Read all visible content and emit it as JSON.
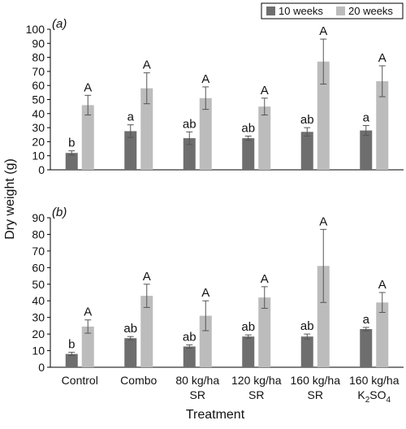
{
  "figure": {
    "y_axis_label": "Dry weight (g)",
    "x_axis_label": "Treatment",
    "legend": [
      {
        "label": "10 weeks",
        "color": "#6e6e6e"
      },
      {
        "label": "20 weeks",
        "color": "#bcbcbc"
      }
    ],
    "category_lines": [
      [
        "Control"
      ],
      [
        "Combo"
      ],
      [
        "80 kg/ha",
        "SR"
      ],
      [
        "120 kg/ha",
        "SR"
      ],
      [
        "160 kg/ha",
        "SR"
      ],
      [
        "160 kg/ha",
        "K2SO4"
      ]
    ]
  },
  "chart_data": [
    {
      "type": "bar",
      "panel_label": "(a)",
      "categories": [
        "Control",
        "Combo",
        "80 kg/ha SR",
        "120 kg/ha SR",
        "160 kg/ha SR",
        "160 kg/ha K2SO4"
      ],
      "ylim": [
        0,
        100
      ],
      "yticks": [
        0,
        10,
        20,
        30,
        40,
        50,
        60,
        70,
        80,
        90,
        100
      ],
      "series": [
        {
          "name": "10 weeks",
          "color": "#6e6e6e",
          "values": [
            12,
            27.5,
            22.5,
            22.5,
            27,
            28
          ],
          "errors": [
            1.5,
            4.5,
            4.5,
            1.5,
            3,
            3.5
          ],
          "letters": [
            "b",
            "a",
            "ab",
            "ab",
            "ab",
            "a"
          ]
        },
        {
          "name": "20 weeks",
          "color": "#bcbcbc",
          "values": [
            46,
            58,
            51,
            45,
            77,
            63
          ],
          "errors": [
            7,
            11,
            8,
            6,
            16,
            11
          ],
          "letters": [
            "A",
            "A",
            "A",
            "A",
            "A",
            "A"
          ]
        }
      ]
    },
    {
      "type": "bar",
      "panel_label": "(b)",
      "categories": [
        "Control",
        "Combo",
        "80 kg/ha SR",
        "120 kg/ha SR",
        "160 kg/ha SR",
        "160 kg/ha K2SO4"
      ],
      "ylim": [
        0,
        90
      ],
      "yticks": [
        0,
        10,
        20,
        30,
        40,
        50,
        60,
        70,
        80,
        90
      ],
      "series": [
        {
          "name": "10 weeks",
          "color": "#6e6e6e",
          "values": [
            8,
            17.5,
            12.5,
            18.5,
            18.5,
            23
          ],
          "errors": [
            1,
            1,
            1,
            1,
            1.5,
            1
          ],
          "letters": [
            "b",
            "ab",
            "ab",
            "ab",
            "ab",
            "a"
          ]
        },
        {
          "name": "20 weeks",
          "color": "#bcbcbc",
          "values": [
            24.5,
            43,
            31,
            42,
            61,
            39
          ],
          "errors": [
            4,
            7,
            9,
            6.5,
            22,
            6
          ],
          "letters": [
            "A",
            "A",
            "A",
            "A",
            "A",
            "A"
          ]
        }
      ]
    }
  ]
}
